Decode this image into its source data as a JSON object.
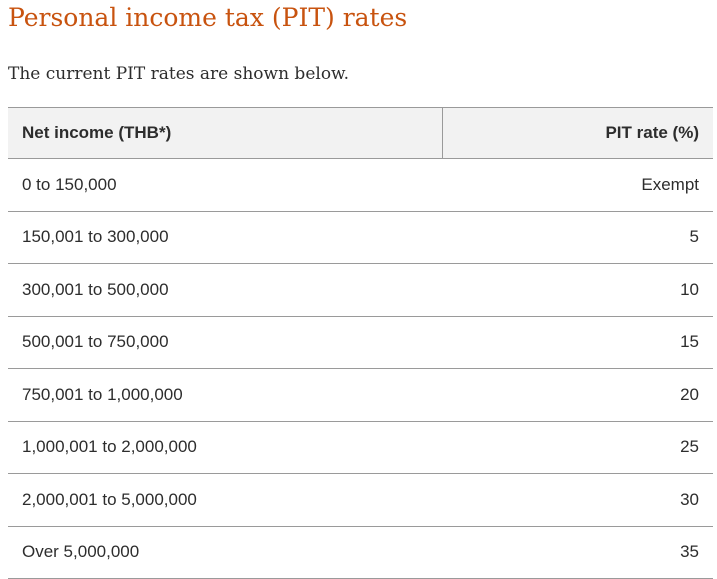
{
  "title": "Personal income tax (PIT) rates",
  "intro": "The current PIT rates are shown below.",
  "table": {
    "headers": [
      "Net income (THB*)",
      "PIT rate (%)"
    ],
    "rows": [
      {
        "income": "0 to 150,000",
        "rate": "Exempt"
      },
      {
        "income": "150,001 to 300,000",
        "rate": "5"
      },
      {
        "income": "300,001 to 500,000",
        "rate": "10"
      },
      {
        "income": "500,001 to 750,000",
        "rate": "15"
      },
      {
        "income": "750,001 to 1,000,000",
        "rate": "20"
      },
      {
        "income": "1,000,001 to 2,000,000",
        "rate": "25"
      },
      {
        "income": "2,000,001 to 5,000,000",
        "rate": "30"
      },
      {
        "income": "Over 5,000,000",
        "rate": "35"
      }
    ]
  },
  "colors": {
    "title": "#c8530f",
    "text": "#2d2d2d",
    "header_bg": "#f2f2f2",
    "rule": "#9a9a9a"
  }
}
